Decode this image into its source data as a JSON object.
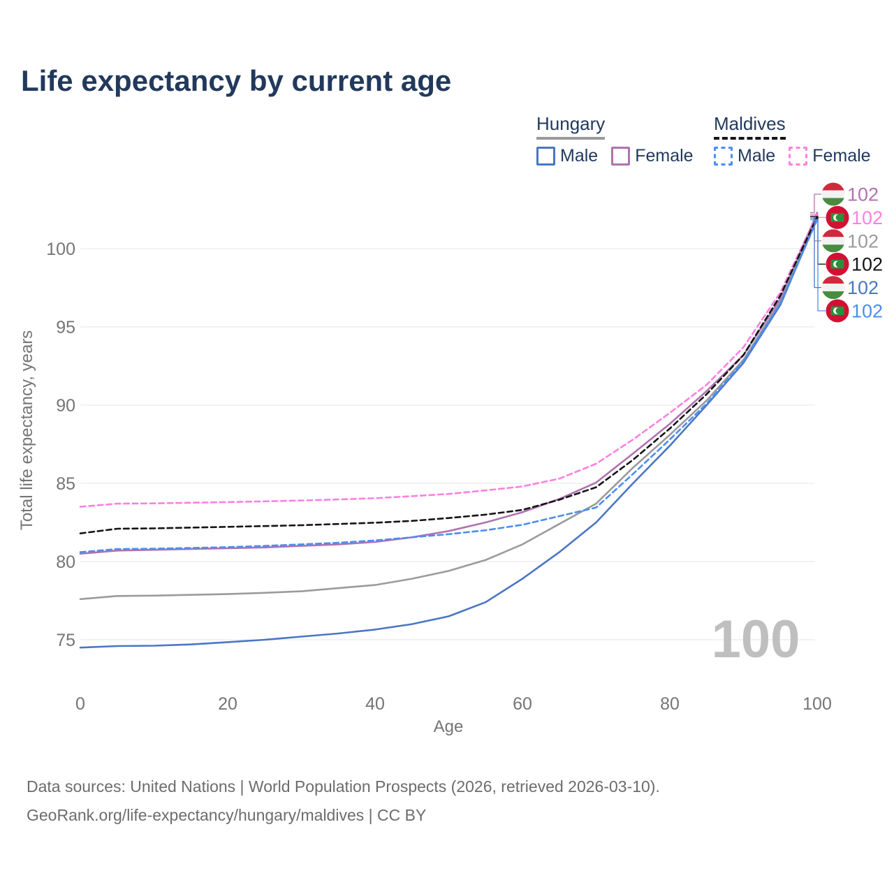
{
  "page_title": "Life expectancy by current age",
  "legend": {
    "groups": [
      {
        "label": "Hungary",
        "line_style": "solid",
        "line_color": "#9a9a9a",
        "items": [
          {
            "label": "Male",
            "color": "#4a76c4",
            "style": "solid"
          },
          {
            "label": "Female",
            "color": "#b072b0",
            "style": "solid"
          }
        ]
      },
      {
        "label": "Maldives",
        "line_style": "dashed",
        "line_color": "#141414",
        "items": [
          {
            "label": "Male",
            "color": "#4a8ef2",
            "style": "dashed"
          },
          {
            "label": "Female",
            "color": "#ff7fe1",
            "style": "dashed"
          }
        ]
      }
    ]
  },
  "chart_data": {
    "type": "line",
    "title": "Life expectancy by current age",
    "xlabel": "Age",
    "ylabel": "Total life expectancy, years",
    "watermark": "100",
    "x": [
      0,
      5,
      10,
      15,
      20,
      25,
      30,
      35,
      40,
      45,
      50,
      55,
      60,
      65,
      70,
      75,
      80,
      85,
      90,
      95,
      100
    ],
    "xticks": [
      0,
      20,
      40,
      60,
      80,
      100
    ],
    "yticks": [
      75,
      80,
      85,
      90,
      95,
      100
    ],
    "xlim": [
      0,
      100
    ],
    "ylim": [
      73.2,
      103.6
    ],
    "grid": "horizontal",
    "legend_position": "top-right",
    "series": [
      {
        "name": "Hungary Female",
        "country": "Hungary",
        "sex": "Female",
        "style": "solid",
        "color": "#b072b0",
        "flag": "hungary",
        "end_label": "102",
        "values": [
          80.5,
          80.7,
          80.75,
          80.8,
          80.85,
          80.9,
          81.0,
          81.1,
          81.25,
          81.55,
          81.95,
          82.5,
          83.15,
          84.0,
          85.05,
          86.9,
          88.8,
          90.9,
          93.2,
          96.8,
          102.3
        ]
      },
      {
        "name": "Maldives Female",
        "country": "Maldives",
        "sex": "Female",
        "style": "dashed",
        "color": "#ff7fe1",
        "flag": "maldives",
        "end_label": "102",
        "values": [
          83.5,
          83.7,
          83.72,
          83.76,
          83.8,
          83.85,
          83.9,
          83.97,
          84.05,
          84.18,
          84.32,
          84.55,
          84.8,
          85.3,
          86.25,
          87.8,
          89.5,
          91.3,
          93.7,
          97.2,
          102.2
        ]
      },
      {
        "name": "Hungary Total",
        "country": "Hungary",
        "sex": "Total",
        "style": "solid",
        "color": "#9b9b9b",
        "flag": "hungary",
        "end_label": "102",
        "values": [
          77.6,
          77.8,
          77.82,
          77.87,
          77.92,
          78.0,
          78.1,
          78.3,
          78.5,
          78.9,
          79.4,
          80.1,
          81.1,
          82.4,
          83.7,
          86.0,
          88.1,
          90.3,
          92.9,
          96.6,
          102.1
        ]
      },
      {
        "name": "Maldives Total",
        "country": "Maldives",
        "sex": "Total",
        "style": "dashed",
        "color": "#141414",
        "flag": "maldives",
        "end_label": "102",
        "values": [
          81.8,
          82.1,
          82.12,
          82.17,
          82.22,
          82.27,
          82.32,
          82.4,
          82.48,
          82.6,
          82.78,
          83.0,
          83.3,
          83.95,
          84.75,
          86.5,
          88.5,
          90.7,
          93.2,
          97.0,
          102.05
        ]
      },
      {
        "name": "Hungary Male",
        "country": "Hungary",
        "sex": "Male",
        "style": "solid",
        "color": "#4a76c4",
        "flag": "hungary",
        "end_label": "102",
        "values": [
          74.5,
          74.6,
          74.62,
          74.7,
          74.85,
          75.0,
          75.2,
          75.4,
          75.65,
          76.0,
          76.5,
          77.4,
          78.9,
          80.6,
          82.5,
          85.0,
          87.4,
          90.0,
          92.7,
          96.4,
          101.95
        ]
      },
      {
        "name": "Maldives Male",
        "country": "Maldives",
        "sex": "Male",
        "style": "dashed",
        "color": "#4a8ef2",
        "flag": "maldives",
        "end_label": "102",
        "values": [
          80.6,
          80.8,
          80.82,
          80.87,
          80.92,
          81.0,
          81.1,
          81.2,
          81.35,
          81.55,
          81.75,
          82.0,
          82.35,
          82.9,
          83.45,
          85.6,
          87.8,
          90.1,
          92.8,
          96.5,
          101.85
        ]
      }
    ]
  },
  "footer": {
    "line1": "Data sources: United Nations | World Population Prospects (2026, retrieved 2026-03-10).",
    "line2": "GeoRank.org/life-expectancy/hungary/maldives | CC BY"
  }
}
